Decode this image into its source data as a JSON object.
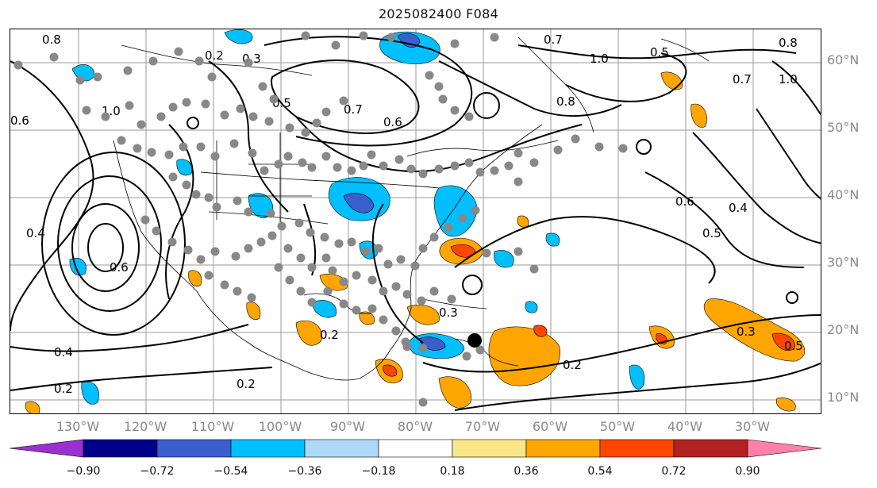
{
  "title": "2025082400 F084",
  "lat_labels": [
    "60°N",
    "50°N",
    "40°N",
    "30°N",
    "20°N",
    "10°N"
  ],
  "lon_labels": [
    "130°W",
    "120°W",
    "110°W",
    "100°W",
    "90°W",
    "80°W",
    "70°W",
    "60°W",
    "50°W",
    "40°W",
    "30°W"
  ],
  "colorbar": {
    "colors": [
      "#9b30d0",
      "#00008b",
      "#3a5fcd",
      "#00bfff",
      "#add8f7",
      "#ffffff",
      "#fce68a",
      "#ffa500",
      "#ff4500",
      "#b22222",
      "#ff80a8"
    ],
    "ticks": [
      "−0.90",
      "−0.72",
      "−0.54",
      "−0.36",
      "−0.18",
      "0.18",
      "0.36",
      "0.54",
      "0.72",
      "0.90"
    ]
  },
  "contour_labels": [
    "0.8",
    "0.2",
    "0.3",
    "0.6",
    "1.0",
    "0.4",
    "0.5",
    "0.7",
    "0.6",
    "0.7",
    "1.0",
    "0.8",
    "0.6",
    "0.6",
    "0.4",
    "0.5",
    "0.3",
    "0.2",
    "0.2",
    "0.4",
    "0.2",
    "0.3",
    "0.5",
    "0.2",
    "0.7",
    "1.0",
    "0.8",
    "0.5"
  ]
}
